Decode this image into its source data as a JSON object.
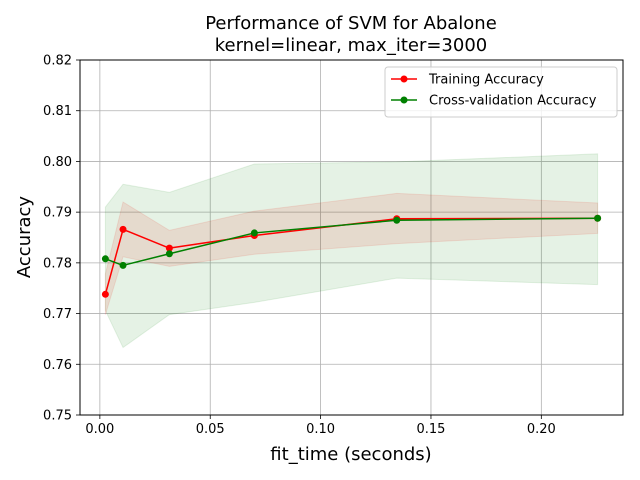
{
  "chart_data": {
    "type": "line",
    "title": "Performance of SVM for Abalone",
    "subtitle": "kernel=linear, max_iter=3000",
    "xlabel": "fit_time (seconds)",
    "ylabel": "Accuracy",
    "xlim": [
      -0.009,
      0.237
    ],
    "ylim": [
      0.75,
      0.82
    ],
    "xticks": [
      0.0,
      0.05,
      0.1,
      0.15,
      0.2
    ],
    "xtick_labels": [
      "0.00",
      "0.05",
      "0.10",
      "0.15",
      "0.20"
    ],
    "yticks": [
      0.75,
      0.76,
      0.77,
      0.78,
      0.79,
      0.8,
      0.81,
      0.82
    ],
    "ytick_labels": [
      "0.75",
      "0.76",
      "0.77",
      "0.78",
      "0.79",
      "0.80",
      "0.81",
      "0.82"
    ],
    "grid": true,
    "legend_position": "top-right",
    "series": [
      {
        "name": "Training Accuracy",
        "color": "#ff0000",
        "band_color": "#ff0000",
        "x": [
          0.0025,
          0.0105,
          0.0315,
          0.07,
          0.1345,
          0.2255
        ],
        "values": [
          0.7738,
          0.7866,
          0.7829,
          0.7854,
          0.7887,
          0.7888
        ],
        "band_lower": [
          0.7698,
          0.7812,
          0.7793,
          0.7817,
          0.7838,
          0.7858
        ],
        "band_upper": [
          0.7778,
          0.792,
          0.7864,
          0.7902,
          0.7937,
          0.7918
        ]
      },
      {
        "name": "Cross-validation Accuracy",
        "color": "#008000",
        "band_color": "#008000",
        "x": [
          0.0025,
          0.0105,
          0.0315,
          0.07,
          0.1345,
          0.2255
        ],
        "values": [
          0.7808,
          0.7795,
          0.7818,
          0.7859,
          0.7884,
          0.7888
        ],
        "band_lower": [
          0.7706,
          0.7633,
          0.7698,
          0.7722,
          0.777,
          0.7757
        ],
        "band_upper": [
          0.791,
          0.7955,
          0.7939,
          0.7995,
          0.7999,
          0.8015
        ]
      }
    ]
  }
}
